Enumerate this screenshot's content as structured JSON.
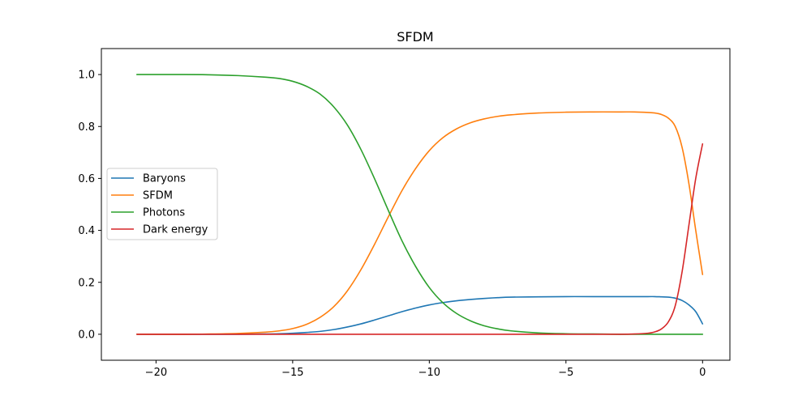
{
  "chart_data": {
    "type": "line",
    "title": "SFDM",
    "xlabel": "",
    "ylabel": "",
    "xlim": [
      -22.0,
      1.0
    ],
    "ylim": [
      -0.1,
      1.1
    ],
    "xticks": [
      -20,
      -15,
      -10,
      -5,
      0
    ],
    "xtick_labels": [
      "−20",
      "−15",
      "−10",
      "−5",
      "0"
    ],
    "yticks": [
      0.0,
      0.2,
      0.4,
      0.6,
      0.8,
      1.0
    ],
    "ytick_labels": [
      "0.0",
      "0.2",
      "0.4",
      "0.6",
      "0.8",
      "1.0"
    ],
    "grid": false,
    "legend_position": "center-left",
    "x": [
      -20.7,
      -19,
      -18,
      -17,
      -16,
      -15.5,
      -15,
      -14.5,
      -14,
      -13.5,
      -13,
      -12.5,
      -12,
      -11.5,
      -11,
      -10.5,
      -10,
      -9.5,
      -9,
      -8.5,
      -8,
      -7.5,
      -7,
      -6,
      -5,
      -4,
      -3,
      -2.5,
      -2,
      -1.75,
      -1.5,
      -1.25,
      -1,
      -0.75,
      -0.5,
      -0.25,
      0
    ],
    "series": [
      {
        "name": "Baryons",
        "color": "#1f77b4",
        "values": [
          0.0,
          0.0,
          0.0,
          0.0,
          0.001,
          0.002,
          0.004,
          0.007,
          0.011,
          0.018,
          0.028,
          0.04,
          0.055,
          0.071,
          0.087,
          0.101,
          0.113,
          0.122,
          0.129,
          0.134,
          0.138,
          0.141,
          0.143,
          0.144,
          0.145,
          0.145,
          0.145,
          0.145,
          0.145,
          0.145,
          0.144,
          0.143,
          0.139,
          0.13,
          0.113,
          0.087,
          0.04
        ]
      },
      {
        "name": "SFDM",
        "color": "#ff7f0e",
        "values": [
          0.0,
          0.0,
          0.001,
          0.003,
          0.008,
          0.013,
          0.022,
          0.038,
          0.065,
          0.106,
          0.167,
          0.249,
          0.347,
          0.452,
          0.553,
          0.638,
          0.707,
          0.757,
          0.791,
          0.814,
          0.829,
          0.839,
          0.845,
          0.852,
          0.855,
          0.856,
          0.856,
          0.856,
          0.854,
          0.852,
          0.846,
          0.832,
          0.8,
          0.72,
          0.58,
          0.4,
          0.23
        ]
      },
      {
        "name": "Photons",
        "color": "#2ca02c",
        "values": [
          1.0,
          1.0,
          0.999,
          0.996,
          0.99,
          0.985,
          0.974,
          0.955,
          0.925,
          0.876,
          0.806,
          0.711,
          0.598,
          0.477,
          0.36,
          0.261,
          0.18,
          0.121,
          0.08,
          0.052,
          0.033,
          0.021,
          0.013,
          0.005,
          0.002,
          0.001,
          0.0,
          0.0,
          0.0,
          0.0,
          0.0,
          0.0,
          0.0,
          0.0,
          0.0,
          0.0,
          0.0
        ]
      },
      {
        "name": "Dark energy",
        "color": "#d62728",
        "values": [
          0.0,
          0.0,
          0.0,
          0.0,
          0.0,
          0.0,
          0.0,
          0.0,
          0.0,
          0.0,
          0.0,
          0.0,
          0.0,
          0.0,
          0.0,
          0.0,
          0.0,
          0.0,
          0.0,
          0.0,
          0.0,
          0.0,
          0.0,
          0.0,
          0.0,
          0.0,
          0.0,
          0.001,
          0.004,
          0.009,
          0.021,
          0.048,
          0.11,
          0.24,
          0.42,
          0.6,
          0.733
        ]
      }
    ]
  }
}
